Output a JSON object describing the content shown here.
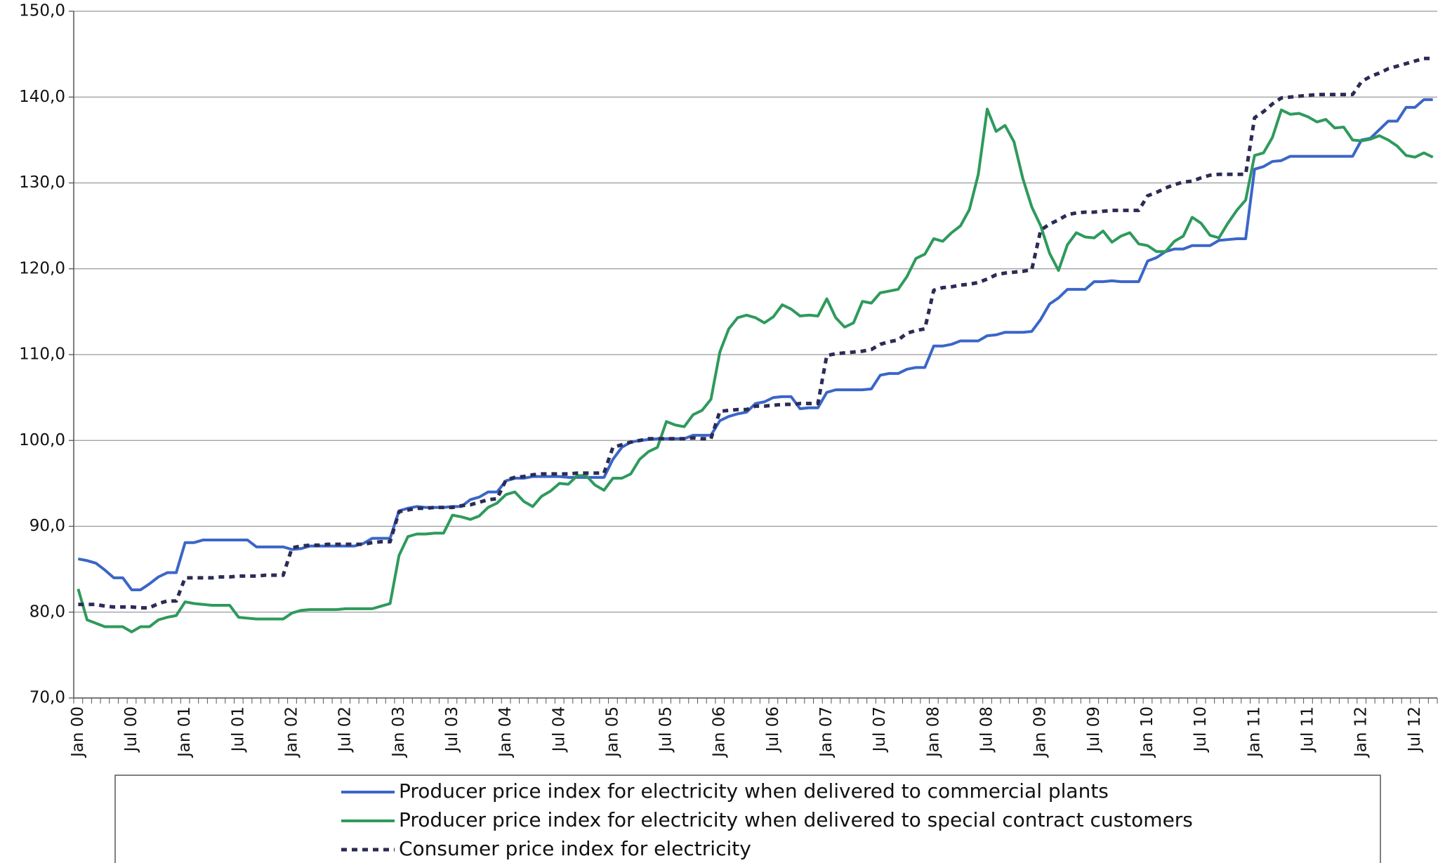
{
  "chart_data": {
    "type": "line",
    "categories": [
      "Jan 00",
      null,
      null,
      null,
      null,
      null,
      "Jul 00",
      null,
      null,
      null,
      null,
      null,
      "Jan 01",
      null,
      null,
      null,
      null,
      null,
      "Jul 01",
      null,
      null,
      null,
      null,
      null,
      "Jan 02",
      null,
      null,
      null,
      null,
      null,
      "Jul 02",
      null,
      null,
      null,
      null,
      null,
      "Jan 03",
      null,
      null,
      null,
      null,
      null,
      "Jul 03",
      null,
      null,
      null,
      null,
      null,
      "Jan 04",
      null,
      null,
      null,
      null,
      null,
      "Jul 04",
      null,
      null,
      null,
      null,
      null,
      "Jan 05",
      null,
      null,
      null,
      null,
      null,
      "Jul 05",
      null,
      null,
      null,
      null,
      null,
      "Jan 06",
      null,
      null,
      null,
      null,
      null,
      "Jul 06",
      null,
      null,
      null,
      null,
      null,
      "Jan 07",
      null,
      null,
      null,
      null,
      null,
      "Jul 07",
      null,
      null,
      null,
      null,
      null,
      "Jan 08",
      null,
      null,
      null,
      null,
      null,
      "Jul 08",
      null,
      null,
      null,
      null,
      null,
      "Jan 09",
      null,
      null,
      null,
      null,
      null,
      "Jul 09",
      null,
      null,
      null,
      null,
      null,
      "Jan 10",
      null,
      null,
      null,
      null,
      null,
      "Jul 10",
      null,
      null,
      null,
      null,
      null,
      "Jan 11",
      null,
      null,
      null,
      null,
      null,
      "Jul 11",
      null,
      null,
      null,
      null,
      null,
      "Jan 12",
      null,
      null,
      null,
      null,
      null,
      "Jul 12",
      null,
      null
    ],
    "series": [
      {
        "name": "Producer price index for electricity when delivered to commercial plants",
        "color": "#3a66c8",
        "dash": false,
        "values": [
          86.2,
          86.0,
          85.7,
          84.9,
          84.0,
          84.0,
          82.6,
          82.6,
          83.3,
          84.1,
          84.6,
          84.6,
          88.1,
          88.1,
          88.4,
          88.4,
          88.4,
          88.4,
          88.4,
          88.4,
          87.6,
          87.6,
          87.6,
          87.6,
          87.3,
          87.4,
          87.7,
          87.7,
          87.7,
          87.7,
          87.7,
          87.7,
          88.0,
          88.6,
          88.6,
          88.6,
          91.8,
          92.1,
          92.3,
          92.2,
          92.2,
          92.2,
          92.3,
          92.3,
          93.1,
          93.4,
          94.0,
          94.0,
          95.3,
          95.6,
          95.6,
          95.8,
          95.8,
          95.8,
          95.8,
          95.7,
          95.7,
          95.7,
          95.7,
          95.7,
          97.8,
          99.2,
          99.8,
          100.0,
          100.1,
          100.2,
          100.2,
          100.2,
          100.2,
          100.6,
          100.6,
          100.6,
          102.3,
          102.8,
          103.1,
          103.3,
          104.3,
          104.5,
          105.0,
          105.1,
          105.1,
          103.7,
          103.8,
          103.8,
          105.6,
          105.9,
          105.9,
          105.9,
          105.9,
          106.0,
          107.6,
          107.8,
          107.8,
          108.3,
          108.5,
          108.5,
          111.0,
          111.0,
          111.2,
          111.6,
          111.6,
          111.6,
          112.2,
          112.3,
          112.6,
          112.6,
          112.6,
          112.7,
          114.1,
          115.9,
          116.6,
          117.6,
          117.6,
          117.6,
          118.5,
          118.5,
          118.6,
          118.5,
          118.5,
          118.5,
          120.9,
          121.3,
          122.0,
          122.3,
          122.3,
          122.7,
          122.7,
          122.7,
          123.3,
          123.4,
          123.5,
          123.5,
          131.6,
          131.9,
          132.5,
          132.6,
          133.1,
          133.1,
          133.1,
          133.1,
          133.1,
          133.1,
          133.1,
          133.1,
          135.0,
          135.2,
          136.2,
          137.2,
          137.2,
          138.8,
          138.8,
          139.7,
          139.7
        ]
      },
      {
        "name": "Producer price index for electricity when delivered to special contract customers",
        "color": "#2e9a5c",
        "dash": false,
        "values": [
          82.7,
          79.1,
          78.7,
          78.3,
          78.3,
          78.3,
          77.7,
          78.3,
          78.3,
          79.1,
          79.4,
          79.6,
          81.2,
          81.0,
          80.9,
          80.8,
          80.8,
          80.8,
          79.4,
          79.3,
          79.2,
          79.2,
          79.2,
          79.2,
          79.9,
          80.2,
          80.3,
          80.3,
          80.3,
          80.3,
          80.4,
          80.4,
          80.4,
          80.4,
          80.7,
          81.0,
          86.6,
          88.8,
          89.1,
          89.1,
          89.2,
          89.2,
          91.3,
          91.1,
          90.8,
          91.2,
          92.2,
          92.7,
          93.7,
          94.0,
          92.9,
          92.3,
          93.5,
          94.1,
          95.0,
          94.9,
          95.9,
          95.9,
          94.8,
          94.2,
          95.6,
          95.6,
          96.1,
          97.8,
          98.7,
          99.2,
          102.2,
          101.8,
          101.6,
          103.0,
          103.5,
          104.8,
          110.3,
          113.0,
          114.3,
          114.6,
          114.3,
          113.7,
          114.4,
          115.8,
          115.3,
          114.5,
          114.6,
          114.5,
          116.5,
          114.3,
          113.2,
          113.7,
          116.2,
          116.0,
          117.2,
          117.4,
          117.6,
          119.1,
          121.2,
          121.7,
          123.5,
          123.2,
          124.2,
          125.0,
          126.9,
          131.0,
          138.6,
          136.0,
          136.7,
          134.8,
          130.5,
          127.2,
          125.0,
          121.8,
          119.8,
          122.8,
          124.2,
          123.7,
          123.6,
          124.4,
          123.1,
          123.8,
          124.2,
          122.9,
          122.7,
          122.0,
          122.0,
          123.2,
          123.8,
          126.0,
          125.3,
          123.9,
          123.6,
          125.3,
          126.8,
          128.0,
          133.2,
          133.5,
          135.3,
          138.5,
          138.0,
          138.1,
          137.7,
          137.1,
          137.4,
          136.4,
          136.5,
          135.0,
          134.9,
          135.1,
          135.5,
          135.0,
          134.3,
          133.2,
          133.0,
          133.5,
          133.0
        ]
      },
      {
        "name": "Consumer price index for electricity",
        "color": "#2b2b55",
        "dash": true,
        "values": [
          80.9,
          80.9,
          80.9,
          80.7,
          80.6,
          80.6,
          80.6,
          80.5,
          80.5,
          81.0,
          81.3,
          81.3,
          84.0,
          84.0,
          84.0,
          84.0,
          84.1,
          84.1,
          84.2,
          84.2,
          84.2,
          84.3,
          84.3,
          84.3,
          87.5,
          87.7,
          87.8,
          87.8,
          87.9,
          87.9,
          87.9,
          87.9,
          87.9,
          88.1,
          88.2,
          88.2,
          91.7,
          91.9,
          92.1,
          92.1,
          92.2,
          92.2,
          92.2,
          92.4,
          92.5,
          92.8,
          93.1,
          93.2,
          95.4,
          95.7,
          95.8,
          96.0,
          96.1,
          96.1,
          96.1,
          96.1,
          96.2,
          96.2,
          96.2,
          96.2,
          99.2,
          99.5,
          99.8,
          100.0,
          100.2,
          100.2,
          100.2,
          100.2,
          100.2,
          100.3,
          100.2,
          100.2,
          103.4,
          103.5,
          103.6,
          103.6,
          104.0,
          104.0,
          104.1,
          104.2,
          104.2,
          104.3,
          104.3,
          104.3,
          109.9,
          110.1,
          110.2,
          110.3,
          110.4,
          110.6,
          111.2,
          111.5,
          111.7,
          112.5,
          112.8,
          113.0,
          117.5,
          117.8,
          117.9,
          118.1,
          118.2,
          118.4,
          118.8,
          119.3,
          119.5,
          119.6,
          119.7,
          119.9,
          124.5,
          125.2,
          125.7,
          126.3,
          126.5,
          126.6,
          126.6,
          126.7,
          126.8,
          126.8,
          126.8,
          126.8,
          128.5,
          128.9,
          129.4,
          129.8,
          130.1,
          130.2,
          130.6,
          130.9,
          131.0,
          131.0,
          131.0,
          131.0,
          137.6,
          138.3,
          139.2,
          139.9,
          140.0,
          140.1,
          140.2,
          140.3,
          140.3,
          140.3,
          140.3,
          140.3,
          141.8,
          142.4,
          142.8,
          143.3,
          143.6,
          143.9,
          144.2,
          144.5,
          144.5
        ]
      }
    ],
    "ylim": [
      70,
      150
    ],
    "yticks": [
      {
        "value": 70,
        "label": "70,0"
      },
      {
        "value": 80,
        "label": "80,0"
      },
      {
        "value": 90,
        "label": "90,0"
      },
      {
        "value": 100,
        "label": "100,0"
      },
      {
        "value": 110,
        "label": "110,0"
      },
      {
        "value": 120,
        "label": "120,0"
      },
      {
        "value": 130,
        "label": "130,0"
      },
      {
        "value": 140,
        "label": "140,0"
      },
      {
        "value": 150,
        "label": "150,0"
      }
    ],
    "grid": true,
    "legend": "bottom"
  }
}
